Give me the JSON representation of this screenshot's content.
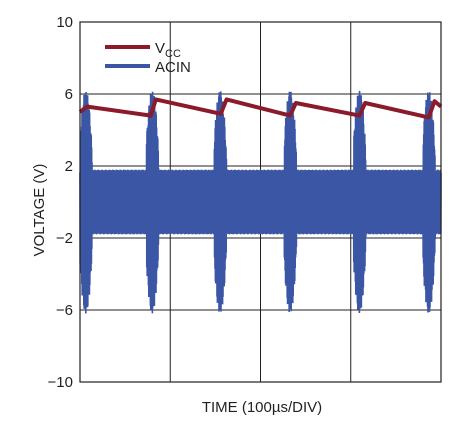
{
  "chart_data": {
    "type": "line",
    "xlabel": "TIME (100µs/DIV)",
    "ylabel": "VOLTAGE (V)",
    "ylim": [
      -10,
      10
    ],
    "xlim": [
      0,
      5
    ],
    "y_ticks": [
      "10",
      "6",
      "2",
      "−2",
      "−6",
      "−10"
    ],
    "grid": true,
    "legend_position": "top-left",
    "series": [
      {
        "name": "VCC",
        "name_main": "V",
        "name_sub": "CC",
        "color": "#8b1a2b",
        "x": [
          0,
          0.1,
          0.98,
          1.05,
          1.95,
          2.03,
          2.91,
          2.99,
          3.87,
          3.95,
          4.83,
          4.91,
          5
        ],
        "y": [
          5.0,
          5.3,
          4.8,
          5.7,
          4.9,
          5.7,
          4.8,
          5.5,
          4.8,
          5.5,
          4.7,
          5.6,
          5.3
        ]
      },
      {
        "name": "ACIN",
        "color": "#3b56a4",
        "note_shape": "high-frequency oscillation ~±1.8 V with bursts to ~±6 V near each VCC peak",
        "bursts_x": [
          0.08,
          1.0,
          1.94,
          2.91,
          3.87,
          4.83
        ],
        "burst_amplitude": 6.2,
        "steady_amplitude": 1.8
      }
    ]
  }
}
